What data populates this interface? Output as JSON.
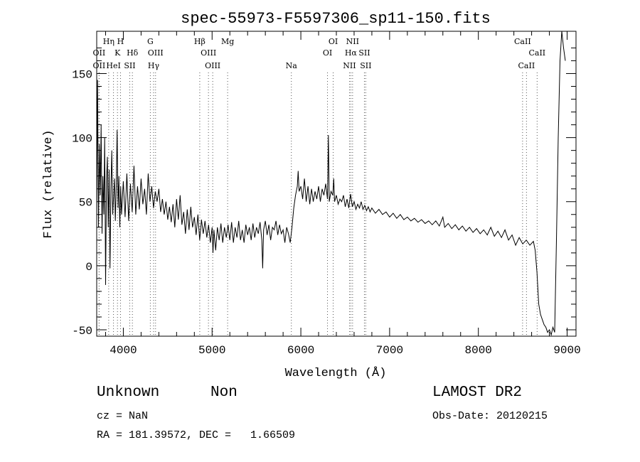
{
  "chart_data": {
    "type": "line",
    "title": "spec-55973-F5597306_sp11-150.fits",
    "xlabel": "Wavelength (Å)",
    "ylabel": "Flux (relative)",
    "xlim": [
      3700,
      9100
    ],
    "ylim": [
      -55,
      183
    ],
    "x_ticks": [
      4000,
      5000,
      6000,
      7000,
      8000,
      9000
    ],
    "y_ticks": [
      -50,
      0,
      50,
      100,
      150
    ],
    "grid": false,
    "series": [
      {
        "points": [
          [
            3700,
            40
          ],
          [
            3710,
            145
          ],
          [
            3720,
            30
          ],
          [
            3730,
            95
          ],
          [
            3740,
            55
          ],
          [
            3750,
            110
          ],
          [
            3760,
            25
          ],
          [
            3770,
            70
          ],
          [
            3780,
            40
          ],
          [
            3790,
            100
          ],
          [
            3800,
            -15
          ],
          [
            3810,
            65
          ],
          [
            3820,
            85
          ],
          [
            3830,
            30
          ],
          [
            3840,
            75
          ],
          [
            3850,
            -2
          ],
          [
            3860,
            60
          ],
          [
            3870,
            90
          ],
          [
            3880,
            40
          ],
          [
            3900,
            68
          ],
          [
            3910,
            35
          ],
          [
            3920,
            62
          ],
          [
            3930,
            106
          ],
          [
            3940,
            45
          ],
          [
            3950,
            70
          ],
          [
            3960,
            30
          ],
          [
            3970,
            62
          ],
          [
            3980,
            40
          ],
          [
            4000,
            66
          ],
          [
            4020,
            38
          ],
          [
            4040,
            72
          ],
          [
            4060,
            35
          ],
          [
            4080,
            64
          ],
          [
            4100,
            42
          ],
          [
            4120,
            78
          ],
          [
            4140,
            40
          ],
          [
            4160,
            62
          ],
          [
            4180,
            44
          ],
          [
            4200,
            68
          ],
          [
            4220,
            48
          ],
          [
            4240,
            60
          ],
          [
            4260,
            40
          ],
          [
            4280,
            72
          ],
          [
            4300,
            50
          ],
          [
            4320,
            62
          ],
          [
            4340,
            45
          ],
          [
            4360,
            58
          ],
          [
            4380,
            50
          ],
          [
            4400,
            60
          ],
          [
            4420,
            42
          ],
          [
            4440,
            52
          ],
          [
            4460,
            40
          ],
          [
            4480,
            50
          ],
          [
            4500,
            36
          ],
          [
            4520,
            46
          ],
          [
            4540,
            34
          ],
          [
            4560,
            48
          ],
          [
            4580,
            30
          ],
          [
            4600,
            52
          ],
          [
            4620,
            36
          ],
          [
            4640,
            55
          ],
          [
            4660,
            32
          ],
          [
            4680,
            42
          ],
          [
            4700,
            25
          ],
          [
            4720,
            44
          ],
          [
            4740,
            28
          ],
          [
            4760,
            46
          ],
          [
            4780,
            30
          ],
          [
            4800,
            38
          ],
          [
            4820,
            24
          ],
          [
            4840,
            40
          ],
          [
            4860,
            20
          ],
          [
            4880,
            36
          ],
          [
            4900,
            25
          ],
          [
            4920,
            35
          ],
          [
            4940,
            22
          ],
          [
            4960,
            32
          ],
          [
            4980,
            18
          ],
          [
            5000,
            30
          ],
          [
            5010,
            10
          ],
          [
            5020,
            28
          ],
          [
            5040,
            12
          ],
          [
            5060,
            30
          ],
          [
            5080,
            20
          ],
          [
            5100,
            33
          ],
          [
            5120,
            18
          ],
          [
            5140,
            30
          ],
          [
            5160,
            22
          ],
          [
            5180,
            32
          ],
          [
            5200,
            20
          ],
          [
            5220,
            34
          ],
          [
            5240,
            18
          ],
          [
            5260,
            30
          ],
          [
            5280,
            22
          ],
          [
            5300,
            35
          ],
          [
            5320,
            20
          ],
          [
            5340,
            28
          ],
          [
            5360,
            18
          ],
          [
            5380,
            32
          ],
          [
            5400,
            24
          ],
          [
            5420,
            30
          ],
          [
            5440,
            20
          ],
          [
            5460,
            33
          ],
          [
            5480,
            22
          ],
          [
            5500,
            30
          ],
          [
            5520,
            25
          ],
          [
            5540,
            34
          ],
          [
            5560,
            20
          ],
          [
            5570,
            -2
          ],
          [
            5580,
            28
          ],
          [
            5600,
            35
          ],
          [
            5620,
            24
          ],
          [
            5640,
            32
          ],
          [
            5660,
            20
          ],
          [
            5680,
            30
          ],
          [
            5700,
            28
          ],
          [
            5720,
            35
          ],
          [
            5740,
            24
          ],
          [
            5760,
            32
          ],
          [
            5780,
            25
          ],
          [
            5800,
            28
          ],
          [
            5820,
            18
          ],
          [
            5840,
            30
          ],
          [
            5860,
            25
          ],
          [
            5880,
            18
          ],
          [
            5900,
            30
          ],
          [
            5920,
            45
          ],
          [
            5940,
            55
          ],
          [
            5960,
            62
          ],
          [
            5970,
            74
          ],
          [
            5980,
            58
          ],
          [
            6000,
            62
          ],
          [
            6020,
            52
          ],
          [
            6040,
            68
          ],
          [
            6060,
            50
          ],
          [
            6080,
            62
          ],
          [
            6100,
            48
          ],
          [
            6120,
            60
          ],
          [
            6140,
            50
          ],
          [
            6160,
            58
          ],
          [
            6180,
            52
          ],
          [
            6200,
            62
          ],
          [
            6220,
            50
          ],
          [
            6240,
            60
          ],
          [
            6260,
            55
          ],
          [
            6280,
            64
          ],
          [
            6300,
            52
          ],
          [
            6310,
            102
          ],
          [
            6320,
            50
          ],
          [
            6340,
            58
          ],
          [
            6360,
            55
          ],
          [
            6370,
            68
          ],
          [
            6380,
            50
          ],
          [
            6400,
            55
          ],
          [
            6420,
            48
          ],
          [
            6440,
            52
          ],
          [
            6460,
            50
          ],
          [
            6480,
            55
          ],
          [
            6500,
            46
          ],
          [
            6520,
            52
          ],
          [
            6540,
            45
          ],
          [
            6560,
            56
          ],
          [
            6580,
            46
          ],
          [
            6600,
            50
          ],
          [
            6620,
            44
          ],
          [
            6640,
            48
          ],
          [
            6660,
            45
          ],
          [
            6680,
            50
          ],
          [
            6700,
            44
          ],
          [
            6720,
            47
          ],
          [
            6740,
            43
          ],
          [
            6760,
            46
          ],
          [
            6780,
            42
          ],
          [
            6800,
            45
          ],
          [
            6840,
            41
          ],
          [
            6880,
            44
          ],
          [
            6920,
            40
          ],
          [
            6960,
            42
          ],
          [
            7000,
            38
          ],
          [
            7040,
            41
          ],
          [
            7080,
            37
          ],
          [
            7120,
            40
          ],
          [
            7160,
            36
          ],
          [
            7200,
            38
          ],
          [
            7240,
            35
          ],
          [
            7280,
            37
          ],
          [
            7320,
            34
          ],
          [
            7360,
            36
          ],
          [
            7400,
            33
          ],
          [
            7440,
            35
          ],
          [
            7480,
            32
          ],
          [
            7520,
            35
          ],
          [
            7560,
            31
          ],
          [
            7600,
            38
          ],
          [
            7620,
            30
          ],
          [
            7660,
            33
          ],
          [
            7700,
            29
          ],
          [
            7740,
            32
          ],
          [
            7780,
            28
          ],
          [
            7820,
            31
          ],
          [
            7860,
            27
          ],
          [
            7900,
            30
          ],
          [
            7940,
            26
          ],
          [
            7980,
            29
          ],
          [
            8020,
            25
          ],
          [
            8060,
            28
          ],
          [
            8100,
            24
          ],
          [
            8140,
            30
          ],
          [
            8180,
            23
          ],
          [
            8220,
            27
          ],
          [
            8260,
            22
          ],
          [
            8300,
            28
          ],
          [
            8340,
            20
          ],
          [
            8380,
            24
          ],
          [
            8420,
            16
          ],
          [
            8460,
            22
          ],
          [
            8500,
            17
          ],
          [
            8540,
            20
          ],
          [
            8580,
            16
          ],
          [
            8620,
            19
          ],
          [
            8640,
            12
          ],
          [
            8660,
            -5
          ],
          [
            8680,
            -30
          ],
          [
            8700,
            -38
          ],
          [
            8720,
            -42
          ],
          [
            8740,
            -46
          ],
          [
            8760,
            -48
          ],
          [
            8780,
            -52
          ],
          [
            8800,
            -50
          ],
          [
            8820,
            -54
          ],
          [
            8840,
            -48
          ],
          [
            8860,
            -52
          ],
          [
            8880,
            20
          ],
          [
            8900,
            100
          ],
          [
            8920,
            160
          ],
          [
            8940,
            183
          ],
          [
            8960,
            170
          ],
          [
            8980,
            160
          ]
        ]
      }
    ],
    "lines": [
      {
        "label": "OII",
        "wl": 3727,
        "row": 2
      },
      {
        "label": "Hη",
        "wl": 3835,
        "row": 0
      },
      {
        "label": "K",
        "wl": 3934,
        "row": 1
      },
      {
        "label": "H",
        "wl": 3968,
        "row": 0
      },
      {
        "label": "Hδ",
        "wl": 4102,
        "row": 1
      },
      {
        "label": "G",
        "wl": 4304,
        "row": 0
      },
      {
        "label": "Hγ",
        "wl": 4341,
        "row": 2
      },
      {
        "label": "Hβ",
        "wl": 4861,
        "row": 0
      },
      {
        "label": "OIII",
        "wl": 4959,
        "row": 1
      },
      {
        "label": "OIII",
        "wl": 5007,
        "row": 2
      },
      {
        "label": "Mg",
        "wl": 5175,
        "row": 0
      },
      {
        "label": "Na",
        "wl": 5893,
        "row": 2
      },
      {
        "label": "OI",
        "wl": 6300,
        "row": 1
      },
      {
        "label": "OI",
        "wl": 6364,
        "row": 0
      },
      {
        "label": "NII",
        "wl": 6548,
        "row": 2
      },
      {
        "label": "Hα",
        "wl": 6563,
        "row": 1
      },
      {
        "label": "NII",
        "wl": 6583,
        "row": 0
      },
      {
        "label": "SII",
        "wl": 6716,
        "row": 1
      },
      {
        "label": "SII",
        "wl": 6731,
        "row": 2
      },
      {
        "label": "CaII",
        "wl": 8498,
        "row": 0
      },
      {
        "label": "CaII",
        "wl": 8542,
        "row": 2
      },
      {
        "label": "CaII",
        "wl": 8662,
        "row": 1
      }
    ],
    "extra_labels": [
      {
        "label": "OII",
        "wl": 3727,
        "row": 1
      },
      {
        "label": "OIII",
        "wl": 4363,
        "row": 1
      },
      {
        "label": "HeI",
        "wl": 3889,
        "row": 2
      },
      {
        "label": "SII",
        "wl": 4072,
        "row": 2
      }
    ]
  },
  "info": {
    "class": "Unknown",
    "subclass": "Non",
    "survey": "LAMOST DR2",
    "cz": "cz = NaN",
    "obs_date": "Obs-Date: 20120215",
    "radec": "RA = 181.39572, DEC =   1.66509"
  }
}
